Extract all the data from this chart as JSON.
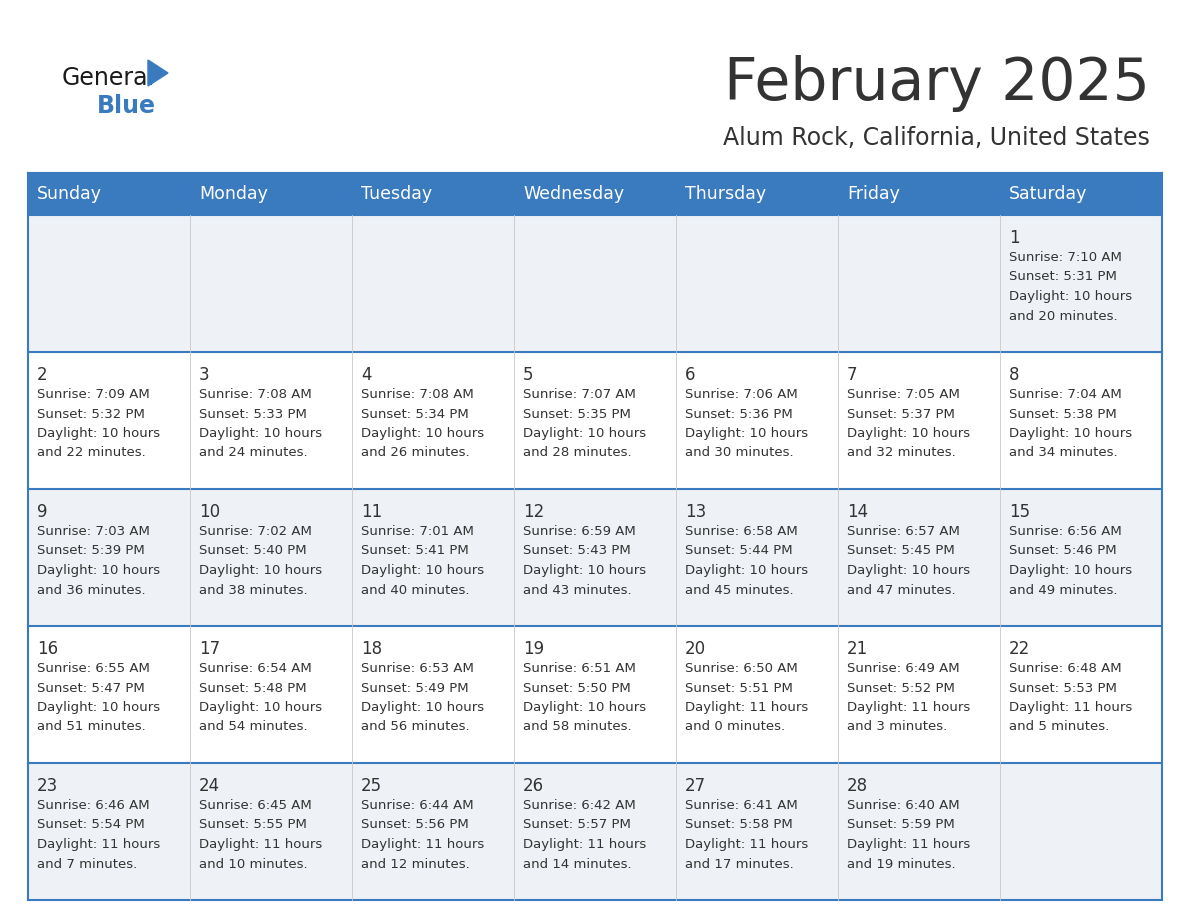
{
  "title": "February 2025",
  "subtitle": "Alum Rock, California, United States",
  "header_color": "#3a7abf",
  "header_text_color": "#ffffff",
  "day_names": [
    "Sunday",
    "Monday",
    "Tuesday",
    "Wednesday",
    "Thursday",
    "Friday",
    "Saturday"
  ],
  "bg_color": "#ffffff",
  "cell_bg_odd": "#eef2f7",
  "cell_bg_even": "#ffffff",
  "row_line_color": "#3a7abf",
  "text_color": "#333333",
  "logo_general_color": "#1a1a1a",
  "logo_blue_color": "#3a7abf",
  "days": [
    {
      "day": 1,
      "col": 6,
      "row": 0,
      "sunrise": "7:10 AM",
      "sunset": "5:31 PM",
      "daylight_hours": 10,
      "daylight_minutes": 20
    },
    {
      "day": 2,
      "col": 0,
      "row": 1,
      "sunrise": "7:09 AM",
      "sunset": "5:32 PM",
      "daylight_hours": 10,
      "daylight_minutes": 22
    },
    {
      "day": 3,
      "col": 1,
      "row": 1,
      "sunrise": "7:08 AM",
      "sunset": "5:33 PM",
      "daylight_hours": 10,
      "daylight_minutes": 24
    },
    {
      "day": 4,
      "col": 2,
      "row": 1,
      "sunrise": "7:08 AM",
      "sunset": "5:34 PM",
      "daylight_hours": 10,
      "daylight_minutes": 26
    },
    {
      "day": 5,
      "col": 3,
      "row": 1,
      "sunrise": "7:07 AM",
      "sunset": "5:35 PM",
      "daylight_hours": 10,
      "daylight_minutes": 28
    },
    {
      "day": 6,
      "col": 4,
      "row": 1,
      "sunrise": "7:06 AM",
      "sunset": "5:36 PM",
      "daylight_hours": 10,
      "daylight_minutes": 30
    },
    {
      "day": 7,
      "col": 5,
      "row": 1,
      "sunrise": "7:05 AM",
      "sunset": "5:37 PM",
      "daylight_hours": 10,
      "daylight_minutes": 32
    },
    {
      "day": 8,
      "col": 6,
      "row": 1,
      "sunrise": "7:04 AM",
      "sunset": "5:38 PM",
      "daylight_hours": 10,
      "daylight_minutes": 34
    },
    {
      "day": 9,
      "col": 0,
      "row": 2,
      "sunrise": "7:03 AM",
      "sunset": "5:39 PM",
      "daylight_hours": 10,
      "daylight_minutes": 36
    },
    {
      "day": 10,
      "col": 1,
      "row": 2,
      "sunrise": "7:02 AM",
      "sunset": "5:40 PM",
      "daylight_hours": 10,
      "daylight_minutes": 38
    },
    {
      "day": 11,
      "col": 2,
      "row": 2,
      "sunrise": "7:01 AM",
      "sunset": "5:41 PM",
      "daylight_hours": 10,
      "daylight_minutes": 40
    },
    {
      "day": 12,
      "col": 3,
      "row": 2,
      "sunrise": "6:59 AM",
      "sunset": "5:43 PM",
      "daylight_hours": 10,
      "daylight_minutes": 43
    },
    {
      "day": 13,
      "col": 4,
      "row": 2,
      "sunrise": "6:58 AM",
      "sunset": "5:44 PM",
      "daylight_hours": 10,
      "daylight_minutes": 45
    },
    {
      "day": 14,
      "col": 5,
      "row": 2,
      "sunrise": "6:57 AM",
      "sunset": "5:45 PM",
      "daylight_hours": 10,
      "daylight_minutes": 47
    },
    {
      "day": 15,
      "col": 6,
      "row": 2,
      "sunrise": "6:56 AM",
      "sunset": "5:46 PM",
      "daylight_hours": 10,
      "daylight_minutes": 49
    },
    {
      "day": 16,
      "col": 0,
      "row": 3,
      "sunrise": "6:55 AM",
      "sunset": "5:47 PM",
      "daylight_hours": 10,
      "daylight_minutes": 51
    },
    {
      "day": 17,
      "col": 1,
      "row": 3,
      "sunrise": "6:54 AM",
      "sunset": "5:48 PM",
      "daylight_hours": 10,
      "daylight_minutes": 54
    },
    {
      "day": 18,
      "col": 2,
      "row": 3,
      "sunrise": "6:53 AM",
      "sunset": "5:49 PM",
      "daylight_hours": 10,
      "daylight_minutes": 56
    },
    {
      "day": 19,
      "col": 3,
      "row": 3,
      "sunrise": "6:51 AM",
      "sunset": "5:50 PM",
      "daylight_hours": 10,
      "daylight_minutes": 58
    },
    {
      "day": 20,
      "col": 4,
      "row": 3,
      "sunrise": "6:50 AM",
      "sunset": "5:51 PM",
      "daylight_hours": 11,
      "daylight_minutes": 0
    },
    {
      "day": 21,
      "col": 5,
      "row": 3,
      "sunrise": "6:49 AM",
      "sunset": "5:52 PM",
      "daylight_hours": 11,
      "daylight_minutes": 3
    },
    {
      "day": 22,
      "col": 6,
      "row": 3,
      "sunrise": "6:48 AM",
      "sunset": "5:53 PM",
      "daylight_hours": 11,
      "daylight_minutes": 5
    },
    {
      "day": 23,
      "col": 0,
      "row": 4,
      "sunrise": "6:46 AM",
      "sunset": "5:54 PM",
      "daylight_hours": 11,
      "daylight_minutes": 7
    },
    {
      "day": 24,
      "col": 1,
      "row": 4,
      "sunrise": "6:45 AM",
      "sunset": "5:55 PM",
      "daylight_hours": 11,
      "daylight_minutes": 10
    },
    {
      "day": 25,
      "col": 2,
      "row": 4,
      "sunrise": "6:44 AM",
      "sunset": "5:56 PM",
      "daylight_hours": 11,
      "daylight_minutes": 12
    },
    {
      "day": 26,
      "col": 3,
      "row": 4,
      "sunrise": "6:42 AM",
      "sunset": "5:57 PM",
      "daylight_hours": 11,
      "daylight_minutes": 14
    },
    {
      "day": 27,
      "col": 4,
      "row": 4,
      "sunrise": "6:41 AM",
      "sunset": "5:58 PM",
      "daylight_hours": 11,
      "daylight_minutes": 17
    },
    {
      "day": 28,
      "col": 5,
      "row": 4,
      "sunrise": "6:40 AM",
      "sunset": "5:59 PM",
      "daylight_hours": 11,
      "daylight_minutes": 19
    }
  ]
}
